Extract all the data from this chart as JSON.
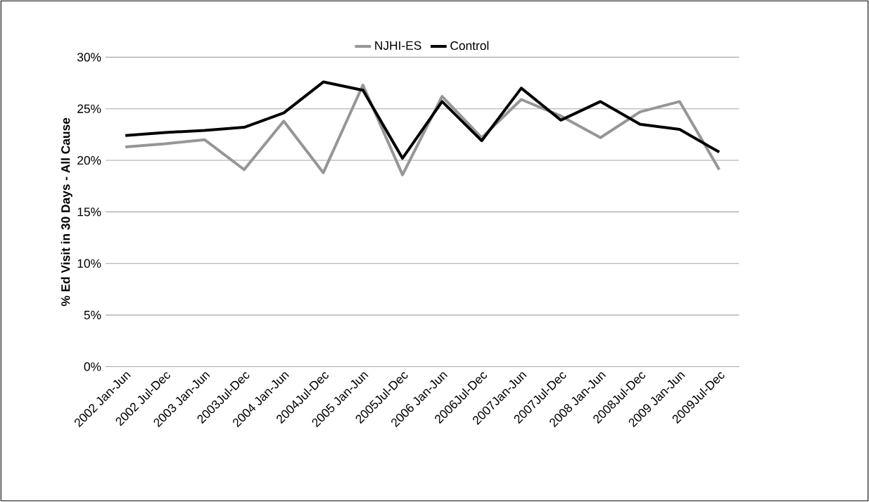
{
  "chart_data": {
    "type": "line",
    "ylabel": "% Ed Visit in 30 Days - All Cause",
    "categories": [
      "2002 Jan-Jun",
      "2002  Jul-Dec",
      "2003 Jan-Jun",
      "2003Jul-Dec",
      "2004 Jan-Jun",
      "2004Jul-Dec",
      "2005 Jan-Jun",
      "2005Jul-Dec",
      "2006 Jan-Jun",
      "2006Jul-Dec",
      "2007Jan-Jun",
      "2007Jul-Dec",
      "2008 Jan-Jun",
      "2008Jul-Dec",
      "2009 Jan-Jun",
      "2009Jul-Dec"
    ],
    "series": [
      {
        "name": "NJHI-ES",
        "color": "#969696",
        "values": [
          21.3,
          21.6,
          22.0,
          19.1,
          23.8,
          18.8,
          27.3,
          18.6,
          26.2,
          22.2,
          25.9,
          24.3,
          22.2,
          24.7,
          25.7,
          19.1
        ]
      },
      {
        "name": "Control",
        "color": "#000000",
        "values": [
          22.4,
          22.7,
          22.9,
          23.2,
          24.6,
          27.6,
          26.8,
          20.2,
          25.7,
          21.9,
          27.0,
          23.9,
          25.7,
          23.5,
          23.0,
          20.8
        ]
      }
    ],
    "ylim": [
      0,
      30
    ],
    "yticks": [
      {
        "value": 0,
        "label": "0%"
      },
      {
        "value": 5,
        "label": "5%"
      },
      {
        "value": 10,
        "label": "10%"
      },
      {
        "value": 15,
        "label": "15%"
      },
      {
        "value": 20,
        "label": "20%"
      },
      {
        "value": 25,
        "label": "25%"
      },
      {
        "value": 30,
        "label": "30%"
      }
    ],
    "grid": "y",
    "legend": "top",
    "marker": "none",
    "line_style": "solid"
  }
}
